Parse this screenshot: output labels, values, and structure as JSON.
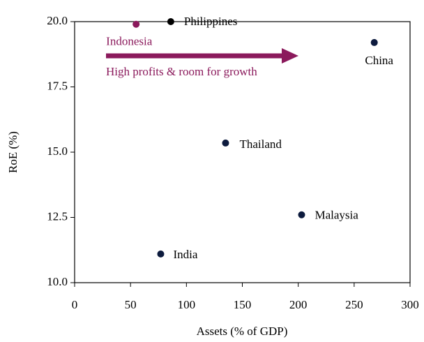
{
  "chart_data": {
    "type": "scatter",
    "xlabel": "Assets (% of GDP)",
    "ylabel": "RoE (%)",
    "labels": [
      "Indonesia",
      "Philippines",
      "China",
      "Thailand",
      "Malaysia",
      "India"
    ],
    "x": [
      55,
      86,
      268,
      135,
      203,
      77
    ],
    "values": [
      19.9,
      20.0,
      19.2,
      15.35,
      12.6,
      11.1
    ],
    "colors": [
      "#8b1a5c",
      "#000000",
      "#0d1b3e",
      "#0d1b3e",
      "#0d1b3e",
      "#0d1b3e"
    ],
    "annotation": "High profits & room for growth",
    "annotation_color": "#8b1a5c",
    "xlim": [
      0,
      300
    ],
    "xticks": [
      0,
      50,
      100,
      150,
      200,
      250,
      300
    ],
    "ylim": [
      10,
      20
    ],
    "yticks": [
      {
        "value": 10,
        "label": "10.0"
      },
      12.5,
      {
        "value": 15,
        "label": "15.0"
      },
      17.5,
      {
        "value": 20,
        "label": "20.0"
      }
    ],
    "grid": false
  }
}
